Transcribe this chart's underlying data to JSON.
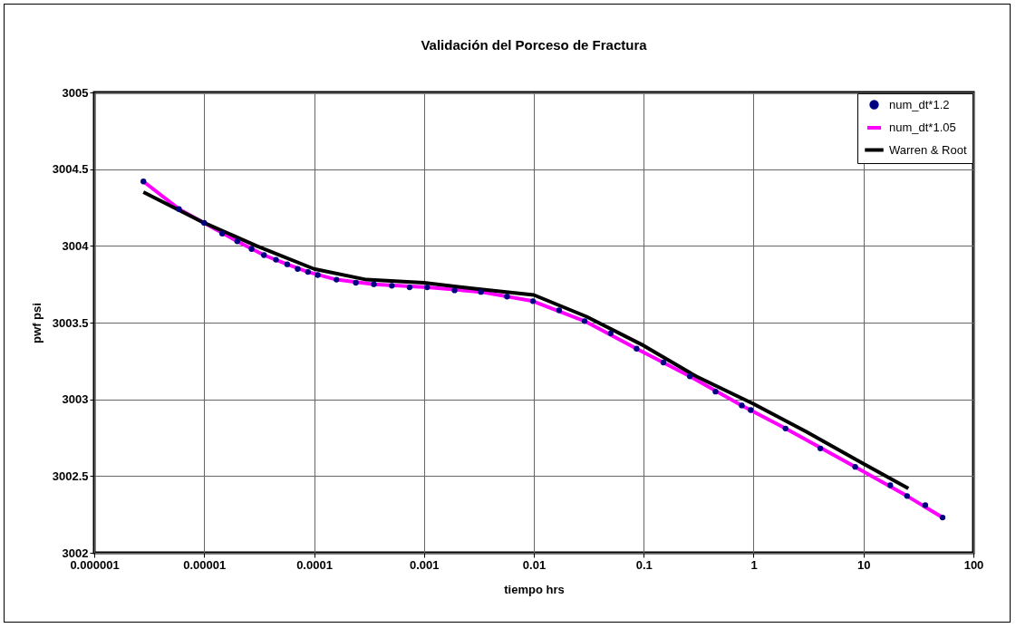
{
  "chart_data": {
    "type": "scatter",
    "title": "Validación del Porceso de Fractura",
    "xlabel": "tiempo hrs",
    "ylabel": "pwf psi",
    "log": "x",
    "xlim": [
      1e-06,
      100
    ],
    "xticks": [
      {
        "value": 1e-06,
        "label": "0.000001"
      },
      {
        "value": 1e-05,
        "label": "0.00001"
      },
      0.0001,
      0.001,
      0.01,
      0.1,
      1,
      10,
      100
    ],
    "ylim": [
      3002,
      3005
    ],
    "yticks": [
      3002,
      3002.5,
      3003,
      3003.5,
      3004,
      3004.5,
      3005
    ],
    "grid": true,
    "legend": "top right",
    "series": [
      {
        "name": "num_dt*1.2",
        "color": "#000080",
        "x": [
          2.8e-06,
          5.9e-06,
          1e-05,
          1.46e-05,
          2e-05,
          2.7e-05,
          3.5e-05,
          4.5e-05,
          5.7e-05,
          7.1e-05,
          8.8e-05,
          0.000108,
          0.00016,
          0.00024,
          0.00035,
          0.00051,
          0.00074,
          0.00107,
          0.0019,
          0.0033,
          0.0057,
          0.0098,
          0.017,
          0.029,
          0.05,
          0.086,
          0.151,
          0.263,
          0.45,
          0.78,
          0.94,
          1.95,
          4.05,
          8.4,
          17.5,
          24.9,
          36.5,
          52.4
        ],
        "values": [
          3004.42,
          3004.24,
          3004.15,
          3004.08,
          3004.03,
          3003.98,
          3003.94,
          3003.91,
          3003.88,
          3003.85,
          3003.83,
          3003.81,
          3003.78,
          3003.76,
          3003.75,
          3003.74,
          3003.73,
          3003.73,
          3003.71,
          3003.7,
          3003.67,
          3003.64,
          3003.58,
          3003.51,
          3003.43,
          3003.33,
          3003.24,
          3003.15,
          3003.05,
          3002.96,
          3002.93,
          3002.81,
          3002.68,
          3002.56,
          3002.44,
          3002.37,
          3002.31,
          3002.23
        ]
      },
      {
        "name": "num_dt*1.05",
        "type": "line",
        "color": "#ff00ff",
        "x": [
          2.8e-06,
          5.9e-06,
          1e-05,
          2e-05,
          3.5e-05,
          5.7e-05,
          8.8e-05,
          0.00016,
          0.00035,
          0.00107,
          0.0033,
          0.0098,
          0.029,
          0.086,
          0.263,
          0.78,
          1.95,
          8.4,
          24.9,
          52.4
        ],
        "values": [
          3004.42,
          3004.24,
          3004.15,
          3004.03,
          3003.94,
          3003.88,
          3003.83,
          3003.78,
          3003.75,
          3003.73,
          3003.7,
          3003.64,
          3003.51,
          3003.33,
          3003.15,
          3002.96,
          3002.81,
          3002.56,
          3002.37,
          3002.23
        ]
      },
      {
        "name": "Warren & Root",
        "type": "line",
        "color": "#000000",
        "x": [
          2.8e-06,
          1e-05,
          3e-05,
          0.0001,
          0.0003,
          0.001,
          0.003,
          0.01,
          0.03,
          0.1,
          0.3,
          1,
          3,
          10,
          25.6
        ],
        "values": [
          3004.35,
          3004.15,
          3004.0,
          3003.85,
          3003.78,
          3003.76,
          3003.72,
          3003.68,
          3003.54,
          3003.35,
          3003.15,
          3002.97,
          3002.79,
          3002.58,
          3002.42
        ]
      }
    ]
  }
}
